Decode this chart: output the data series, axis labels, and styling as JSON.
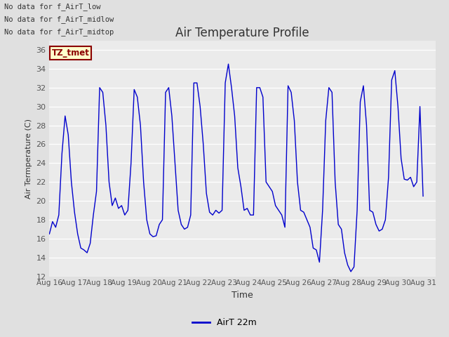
{
  "title": "Air Temperature Profile",
  "ylabel": "Air Termperature (C)",
  "xlabel": "Time",
  "legend_label": "AirT 22m",
  "ylim": [
    12,
    37
  ],
  "yticks": [
    12,
    14,
    16,
    18,
    20,
    22,
    24,
    26,
    28,
    30,
    32,
    34,
    36
  ],
  "text_lines": [
    "No data for f_AirT_low",
    "No data for f_AirT_midlow",
    "No data for f_AirT_midtop"
  ],
  "tz_label": "TZ_tmet",
  "line_color": "#0000cc",
  "bg_color": "#e0e0e0",
  "plot_bg_color": "#ebebeb",
  "temperatures": [
    16.5,
    17.8,
    17.2,
    18.5,
    25.0,
    29.0,
    27.0,
    22.0,
    18.8,
    16.5,
    15.0,
    14.8,
    14.5,
    15.5,
    18.5,
    21.0,
    32.0,
    31.5,
    28.0,
    22.0,
    19.5,
    20.3,
    19.2,
    19.5,
    18.5,
    19.0,
    24.0,
    31.8,
    31.0,
    28.0,
    22.0,
    18.0,
    16.5,
    16.2,
    16.3,
    17.5,
    18.0,
    31.5,
    32.0,
    29.0,
    24.0,
    19.0,
    17.5,
    17.0,
    17.2,
    18.5,
    32.5,
    32.5,
    30.0,
    26.0,
    20.8,
    18.8,
    18.5,
    19.0,
    18.7,
    19.0,
    32.5,
    34.5,
    32.0,
    29.0,
    23.5,
    21.5,
    19.0,
    19.2,
    18.5,
    18.5,
    32.0,
    32.0,
    31.0,
    22.0,
    21.5,
    21.0,
    19.5,
    19.0,
    18.5,
    17.2,
    32.2,
    31.5,
    28.5,
    22.0,
    19.0,
    18.8,
    18.0,
    17.2,
    15.0,
    14.8,
    13.5,
    19.0,
    28.5,
    32.0,
    31.5,
    22.0,
    17.5,
    17.0,
    14.5,
    13.2,
    12.5,
    13.0,
    19.0,
    30.5,
    32.2,
    28.0,
    19.0,
    18.8,
    17.5,
    16.8,
    17.0,
    18.0,
    22.5,
    32.8,
    33.8,
    30.0,
    24.5,
    22.3,
    22.2,
    22.5,
    21.5,
    22.0,
    30.0,
    20.5
  ]
}
